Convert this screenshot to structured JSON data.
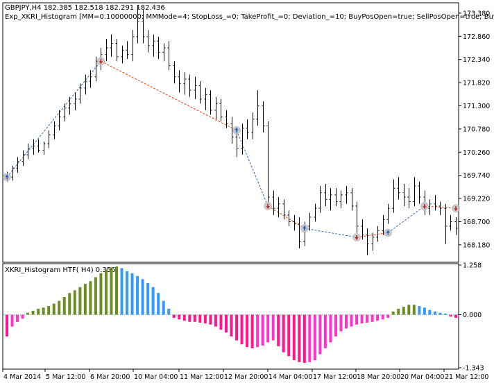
{
  "header": {
    "symbol_line": "GBPJPY,H4  182.385 182.518 182.291 182.436",
    "expert_line": "Exp_XKRI_Histogram [MM=0.10000000; MMMode=4; StopLoss_=0; TakeProfit_=0; Deviation_=10; BuyPosOpen=true; SellPosOpen=true; BuyPosClose=true"
  },
  "indicator": {
    "label": "XKRI_Histogram HTF( H4) 0.356"
  },
  "colors": {
    "bull": "#6b8e23",
    "bull_light": "#3399ff",
    "bear": "#ff1493",
    "bear_light": "#ff33cc",
    "bar": "#000000",
    "zz_down": "#ff3300",
    "zz_up": "#3366cc",
    "marker": "#c0c0c0",
    "arrow_up": "#1e60c8",
    "arrow_down": "#cc2222",
    "frame": "#000000"
  },
  "chart_data": [
    {
      "type": "candlestick",
      "title": "GBPJPY,H4",
      "y_ticks": [
        "173.380",
        "172.860",
        "172.340",
        "171.820",
        "171.300",
        "170.780",
        "170.260",
        "169.740",
        "169.220",
        "168.700",
        "168.180"
      ],
      "ylim": [
        167.82,
        173.58
      ],
      "x_ticks": [
        "4 Mar 2014",
        "5 Mar 12:00",
        "6 Mar 20:00",
        "10 Mar 04:00",
        "11 Mar 12:00",
        "12 Mar 20:00",
        "14 Mar 04:00",
        "17 Mar 12:00",
        "18 Mar 20:00",
        "20 Mar 04:00",
        "21 Mar 12:00"
      ],
      "bars": [
        [
          169.74,
          169.82,
          169.6,
          169.7
        ],
        [
          169.7,
          169.95,
          169.62,
          169.9
        ],
        [
          169.9,
          170.15,
          169.8,
          170.05
        ],
        [
          170.05,
          170.3,
          169.95,
          170.2
        ],
        [
          170.2,
          170.45,
          170.1,
          170.35
        ],
        [
          170.35,
          170.55,
          170.2,
          170.4
        ],
        [
          170.4,
          170.55,
          170.25,
          170.3
        ],
        [
          170.3,
          170.5,
          170.2,
          170.45
        ],
        [
          170.45,
          170.75,
          170.35,
          170.65
        ],
        [
          170.65,
          170.95,
          170.55,
          170.85
        ],
        [
          170.85,
          171.2,
          170.75,
          171.05
        ],
        [
          171.05,
          171.35,
          170.95,
          171.25
        ],
        [
          171.25,
          171.5,
          171.1,
          171.35
        ],
        [
          171.35,
          171.6,
          171.2,
          171.45
        ],
        [
          171.45,
          171.8,
          171.35,
          171.7
        ],
        [
          171.7,
          172.0,
          171.55,
          171.85
        ],
        [
          171.85,
          172.1,
          171.7,
          171.95
        ],
        [
          171.95,
          172.4,
          171.85,
          172.3
        ],
        [
          172.3,
          172.6,
          172.1,
          172.45
        ],
        [
          172.45,
          172.8,
          172.3,
          172.6
        ],
        [
          172.6,
          172.9,
          172.4,
          172.7
        ],
        [
          172.7,
          172.8,
          172.3,
          172.4
        ],
        [
          172.4,
          172.65,
          172.25,
          172.55
        ],
        [
          172.55,
          172.75,
          172.35,
          172.45
        ],
        [
          172.45,
          173.0,
          172.3,
          172.85
        ],
        [
          172.85,
          173.55,
          172.7,
          173.2
        ],
        [
          173.2,
          173.45,
          172.7,
          172.85
        ],
        [
          172.85,
          173.0,
          172.5,
          172.65
        ],
        [
          172.65,
          172.9,
          172.4,
          172.75
        ],
        [
          172.75,
          172.85,
          172.35,
          172.5
        ],
        [
          172.5,
          172.7,
          172.3,
          172.6
        ],
        [
          172.6,
          172.75,
          172.1,
          172.2
        ],
        [
          172.2,
          172.3,
          171.8,
          171.95
        ],
        [
          171.95,
          172.1,
          171.6,
          171.8
        ],
        [
          171.8,
          172.05,
          171.55,
          171.9
        ],
        [
          171.9,
          172.0,
          171.5,
          171.65
        ],
        [
          171.65,
          171.95,
          171.45,
          171.75
        ],
        [
          171.75,
          171.85,
          171.35,
          171.45
        ],
        [
          171.45,
          171.7,
          171.2,
          171.55
        ],
        [
          171.55,
          171.65,
          171.1,
          171.2
        ],
        [
          171.2,
          171.5,
          171.0,
          171.35
        ],
        [
          171.35,
          171.45,
          170.95,
          171.05
        ],
        [
          171.05,
          171.2,
          170.8,
          170.9
        ],
        [
          170.9,
          171.05,
          170.45,
          170.6
        ],
        [
          170.6,
          170.7,
          170.15,
          170.35
        ],
        [
          170.35,
          170.9,
          170.2,
          170.8
        ],
        [
          170.8,
          171.0,
          170.55,
          170.7
        ],
        [
          170.7,
          171.15,
          170.55,
          171.0
        ],
        [
          171.0,
          171.65,
          170.85,
          171.3
        ],
        [
          171.3,
          171.4,
          170.7,
          170.85
        ],
        [
          170.85,
          170.95,
          169.1,
          169.25
        ],
        [
          169.25,
          169.4,
          168.85,
          169.0
        ],
        [
          169.0,
          169.25,
          168.8,
          169.1
        ],
        [
          169.1,
          169.2,
          168.75,
          168.85
        ],
        [
          168.85,
          168.95,
          168.6,
          168.7
        ],
        [
          168.7,
          168.85,
          168.5,
          168.65
        ],
        [
          168.65,
          168.8,
          168.1,
          168.25
        ],
        [
          168.25,
          168.7,
          168.15,
          168.6
        ],
        [
          168.6,
          168.9,
          168.5,
          168.8
        ],
        [
          168.8,
          169.1,
          168.7,
          169.0
        ],
        [
          169.0,
          169.5,
          168.9,
          169.35
        ],
        [
          169.35,
          169.55,
          169.05,
          169.2
        ],
        [
          169.2,
          169.45,
          168.95,
          169.3
        ],
        [
          169.3,
          169.45,
          169.05,
          169.15
        ],
        [
          169.15,
          169.4,
          169.0,
          169.3
        ],
        [
          169.3,
          169.5,
          169.1,
          169.35
        ],
        [
          169.35,
          169.45,
          168.95,
          169.05
        ],
        [
          169.05,
          169.15,
          168.45,
          168.6
        ],
        [
          168.6,
          168.75,
          168.3,
          168.4
        ],
        [
          168.4,
          168.55,
          167.95,
          168.2
        ],
        [
          168.2,
          168.45,
          168.05,
          168.35
        ],
        [
          168.35,
          168.6,
          168.25,
          168.5
        ],
        [
          168.5,
          168.85,
          168.4,
          168.75
        ],
        [
          168.75,
          169.1,
          168.65,
          169.0
        ],
        [
          169.0,
          169.65,
          168.9,
          169.45
        ],
        [
          169.45,
          169.7,
          169.2,
          169.35
        ],
        [
          169.35,
          169.55,
          169.05,
          169.25
        ],
        [
          169.25,
          169.45,
          169.0,
          169.15
        ],
        [
          169.15,
          169.7,
          169.05,
          169.5
        ],
        [
          169.5,
          169.6,
          169.1,
          169.25
        ],
        [
          169.25,
          169.4,
          168.85,
          169.0
        ],
        [
          169.0,
          169.2,
          168.85,
          169.1
        ],
        [
          169.1,
          169.3,
          168.95,
          169.05
        ],
        [
          169.05,
          169.15,
          168.85,
          169.0
        ],
        [
          169.0,
          169.1,
          168.2,
          168.6
        ],
        [
          168.6,
          168.85,
          168.5,
          168.7
        ],
        [
          168.7,
          168.8,
          168.4,
          168.55
        ]
      ],
      "zigzag": [
        {
          "bar": 0,
          "price": 169.7,
          "dir": "up"
        },
        {
          "bar": 18,
          "price": 172.3,
          "dir": "down"
        },
        {
          "bar": 44,
          "price": 170.75,
          "dir": "up"
        },
        {
          "bar": 50,
          "price": 169.05,
          "dir": "down"
        },
        {
          "bar": 57,
          "price": 168.55,
          "dir": "up"
        },
        {
          "bar": 67,
          "price": 168.35,
          "dir": "down"
        },
        {
          "bar": 73,
          "price": 168.45,
          "dir": "up"
        },
        {
          "bar": 80,
          "price": 169.05,
          "dir": "down"
        },
        {
          "bar": 86,
          "price": 169.0,
          "dir": "down"
        }
      ]
    },
    {
      "type": "bar",
      "title": "XKRI_Histogram HTF( H4) 0.356",
      "y_ticks": [
        "1.258",
        "0.000",
        "-1.343"
      ],
      "ylim": [
        -1.343,
        1.258
      ],
      "values": [
        -0.55,
        -0.3,
        -0.18,
        -0.1,
        0.05,
        0.1,
        0.15,
        0.18,
        0.22,
        0.28,
        0.35,
        0.45,
        0.55,
        0.62,
        0.7,
        0.78,
        0.85,
        0.95,
        1.05,
        1.15,
        1.2,
        1.22,
        1.18,
        1.1,
        1.05,
        0.98,
        0.9,
        0.8,
        0.7,
        0.55,
        0.35,
        0.15,
        -0.08,
        -0.12,
        -0.15,
        -0.18,
        -0.18,
        -0.2,
        -0.22,
        -0.25,
        -0.3,
        -0.38,
        -0.45,
        -0.55,
        -0.65,
        -0.75,
        -0.82,
        -0.85,
        -0.82,
        -0.78,
        -0.7,
        -0.65,
        -0.8,
        -0.95,
        -1.05,
        -1.15,
        -1.2,
        -1.22,
        -1.2,
        -1.15,
        -1.0,
        -0.85,
        -0.7,
        -0.55,
        -0.42,
        -0.35,
        -0.3,
        -0.25,
        -0.22,
        -0.2,
        -0.18,
        -0.15,
        -0.12,
        -0.08,
        0.08,
        0.15,
        0.2,
        0.25,
        0.25,
        0.22,
        0.18,
        0.12,
        0.08,
        0.05,
        0.03,
        -0.05,
        -0.08
      ]
    }
  ]
}
